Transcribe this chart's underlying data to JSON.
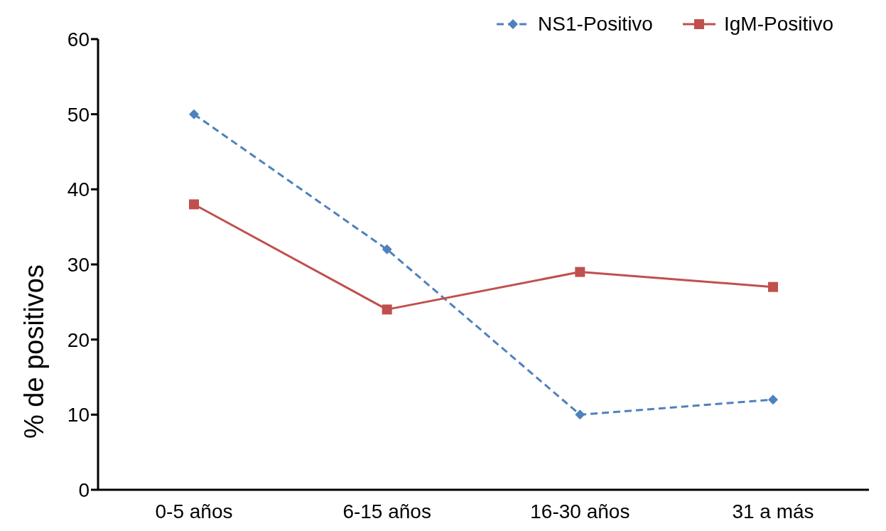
{
  "chart_data": {
    "type": "line",
    "ylabel": "% de positivos",
    "categories": [
      "0-5 años",
      "6-15 años",
      "16-30 años",
      "31 a más"
    ],
    "series": [
      {
        "name": "NS1-Positivo",
        "color": "#4f81bd",
        "values": [
          50,
          32,
          10,
          12
        ],
        "marker": "diamond",
        "line_style": "dashed"
      },
      {
        "name": "IgM-Positivo",
        "color": "#c0504d",
        "values": [
          38,
          24,
          29,
          27
        ],
        "marker": "square",
        "line_style": "solid"
      }
    ],
    "ylim": [
      0,
      60
    ],
    "yticks": [
      0,
      10,
      20,
      30,
      40,
      50,
      60
    ],
    "grid": false,
    "legend": "top right"
  }
}
